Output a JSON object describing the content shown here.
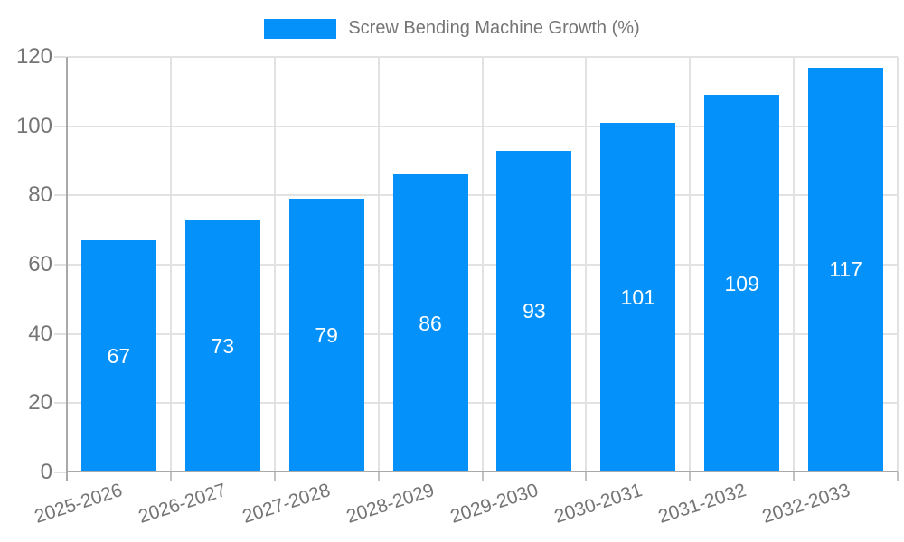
{
  "chart_data": {
    "type": "bar",
    "title": "",
    "legend_label": "Screw Bending Machine Growth (%)",
    "legend_position": "top-center",
    "categories": [
      "2025-2026",
      "2026-2027",
      "2027-2028",
      "2028-2029",
      "2029-2030",
      "2030-2031",
      "2031-2032",
      "2032-2033"
    ],
    "values": [
      67,
      73,
      79,
      86,
      93,
      101,
      109,
      117
    ],
    "xlabel": "",
    "ylabel": "",
    "ylim": [
      0,
      120
    ],
    "yticks": [
      0,
      20,
      40,
      60,
      80,
      100,
      120
    ],
    "grid": true,
    "x_label_rotation_deg": -18,
    "bar_value_labels_inside": true,
    "colors": {
      "bar": "#0591fa",
      "bar_value_text": "#ffffff",
      "axis_text": "#757575",
      "grid_line": "#e2e2e2",
      "axis_line": "#a9a9a9",
      "x_tick": "#c2c2c2",
      "y_tick": "#e0e0e0",
      "background": "#ffffff"
    }
  }
}
